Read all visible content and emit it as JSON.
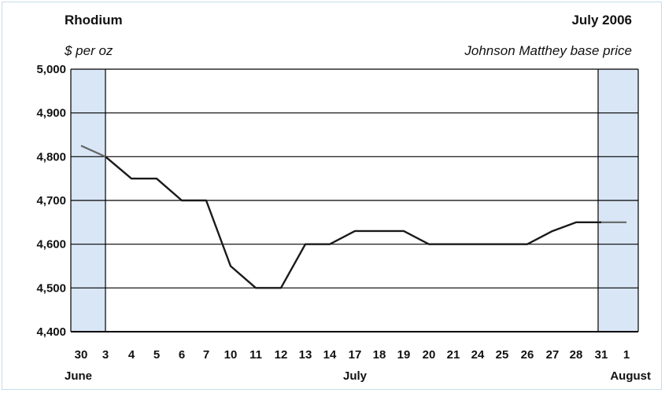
{
  "header": {
    "title": "Rhodium",
    "date": "July 2006",
    "unit": "$ per oz",
    "source": "Johnson Matthey base price"
  },
  "chart_data": {
    "type": "line",
    "title": "Rhodium",
    "ylabel": "$ per oz",
    "ylim": [
      4400,
      5000
    ],
    "yticks": [
      4400,
      4500,
      4600,
      4700,
      4800,
      4900,
      5000
    ],
    "ytick_labels": [
      "4,400",
      "4,500",
      "4,600",
      "4,700",
      "4,800",
      "4,900",
      "5,000"
    ],
    "grid": true,
    "categories": [
      "30",
      "3",
      "4",
      "5",
      "6",
      "7",
      "10",
      "11",
      "12",
      "13",
      "14",
      "17",
      "18",
      "19",
      "20",
      "21",
      "24",
      "25",
      "26",
      "27",
      "28",
      "31",
      "1"
    ],
    "month_labels": [
      {
        "label": "June",
        "at": "30"
      },
      {
        "label": "July",
        "at": "17"
      },
      {
        "label": "August",
        "at": "1"
      }
    ],
    "shaded_regions": [
      [
        "30",
        "3"
      ],
      [
        "31",
        "1"
      ]
    ],
    "series": [
      {
        "values": [
          4825,
          4800,
          4750,
          4750,
          4700,
          4700,
          4550,
          4500,
          4500,
          4600,
          4600,
          4630,
          4630,
          4630,
          4600,
          4600,
          4600,
          4600,
          4600,
          4630,
          4650,
          4650,
          4650
        ]
      }
    ]
  },
  "colors": {
    "line": "#1a1a1a",
    "line_outside": "#666666",
    "shade": "#d8e6f6",
    "grid": "#000000"
  }
}
